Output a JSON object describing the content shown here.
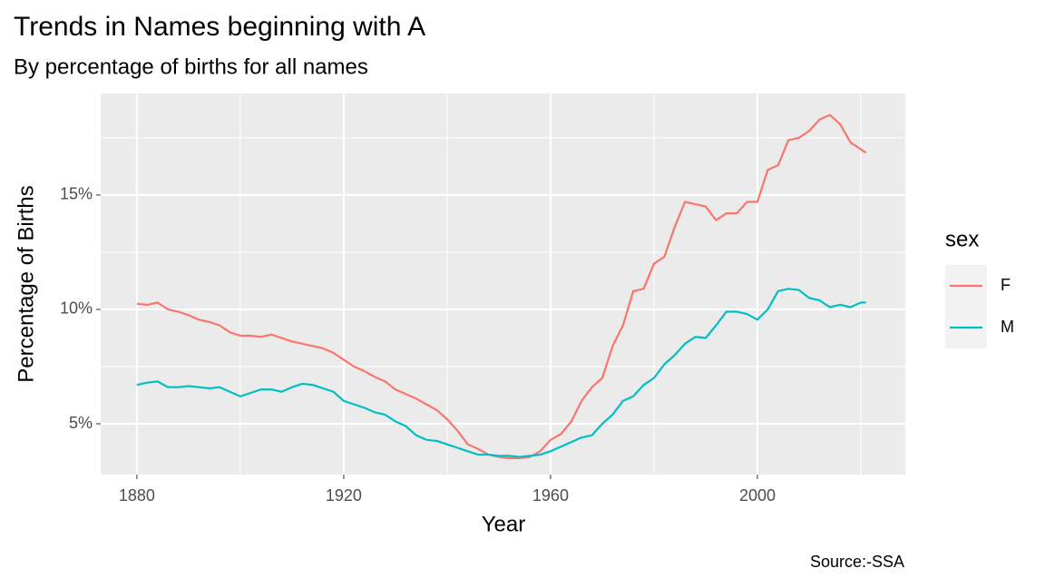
{
  "chart_data": {
    "type": "line",
    "title": "Trends in Names beginning with A",
    "subtitle": "By percentage of births for all names",
    "x_label": "Year",
    "y_label": "Percentage of Births",
    "caption": "Source:-SSA",
    "legend_title": "sex",
    "legend_position": "right",
    "grid": true,
    "x": [
      1880,
      1882,
      1884,
      1886,
      1888,
      1890,
      1892,
      1894,
      1896,
      1898,
      1900,
      1902,
      1904,
      1906,
      1908,
      1910,
      1912,
      1914,
      1916,
      1918,
      1920,
      1922,
      1924,
      1926,
      1928,
      1930,
      1932,
      1934,
      1936,
      1938,
      1940,
      1942,
      1944,
      1946,
      1948,
      1950,
      1952,
      1954,
      1956,
      1958,
      1960,
      1962,
      1964,
      1966,
      1968,
      1970,
      1972,
      1974,
      1976,
      1978,
      1980,
      1982,
      1984,
      1986,
      1988,
      1990,
      1992,
      1994,
      1996,
      1998,
      2000,
      2002,
      2004,
      2006,
      2008,
      2010,
      2012,
      2014,
      2016,
      2018,
      2020,
      2021
    ],
    "series": [
      {
        "name": "F",
        "color": "#f8766d",
        "values": [
          10.25,
          10.2,
          10.3,
          10.0,
          9.9,
          9.75,
          9.55,
          9.45,
          9.3,
          9.0,
          8.85,
          8.85,
          8.8,
          8.9,
          8.75,
          8.6,
          8.5,
          8.4,
          8.3,
          8.1,
          7.8,
          7.5,
          7.3,
          7.05,
          6.85,
          6.5,
          6.3,
          6.1,
          5.85,
          5.6,
          5.2,
          4.7,
          4.1,
          3.9,
          3.65,
          3.55,
          3.5,
          3.5,
          3.55,
          3.8,
          4.3,
          4.55,
          5.1,
          6.0,
          6.6,
          7.0,
          8.4,
          9.3,
          10.8,
          10.9,
          12.0,
          12.3,
          13.6,
          14.7,
          14.6,
          14.5,
          13.9,
          14.2,
          14.2,
          14.7,
          14.7,
          16.1,
          16.3,
          17.4,
          17.5,
          17.8,
          18.3,
          18.5,
          18.1,
          17.3,
          17.0,
          16.85
        ]
      },
      {
        "name": "M",
        "color": "#00bfc4",
        "values": [
          6.7,
          6.8,
          6.85,
          6.6,
          6.6,
          6.65,
          6.6,
          6.55,
          6.6,
          6.4,
          6.2,
          6.35,
          6.5,
          6.5,
          6.4,
          6.6,
          6.75,
          6.7,
          6.55,
          6.4,
          6.0,
          5.85,
          5.7,
          5.5,
          5.4,
          5.1,
          4.9,
          4.5,
          4.3,
          4.25,
          4.1,
          3.95,
          3.8,
          3.65,
          3.65,
          3.6,
          3.6,
          3.55,
          3.6,
          3.65,
          3.8,
          4.0,
          4.2,
          4.4,
          4.5,
          5.0,
          5.4,
          6.0,
          6.2,
          6.7,
          7.0,
          7.6,
          8.0,
          8.5,
          8.8,
          8.75,
          9.3,
          9.9,
          9.9,
          9.8,
          9.55,
          10.0,
          10.8,
          10.9,
          10.85,
          10.5,
          10.4,
          10.1,
          10.2,
          10.1,
          10.3,
          10.3
        ]
      }
    ],
    "xlim": [
      1873,
      2028.6
    ],
    "ylim": [
      2.78,
      19.44
    ],
    "xticks": [
      1880,
      1920,
      1960,
      2000
    ],
    "yticks": [
      {
        "value": 5,
        "label": "5%"
      },
      {
        "value": 10,
        "label": "10%"
      },
      {
        "value": 15,
        "label": "15%"
      }
    ],
    "minor_xticks": [
      1900,
      1940,
      1980,
      2020
    ],
    "minor_yticks": [
      7.5,
      12.5,
      17.5
    ]
  }
}
